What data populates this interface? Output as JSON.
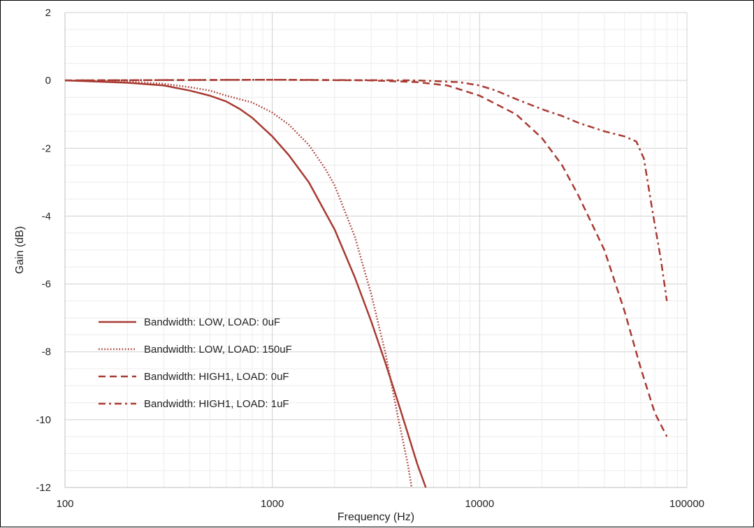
{
  "chart_data": {
    "type": "line",
    "xlabel": "Frequency (Hz)",
    "ylabel": "Gain (dB)",
    "x_scale": "log",
    "xlim": [
      100,
      100000
    ],
    "ylim": [
      -12,
      2
    ],
    "x_ticks": [
      100,
      1000,
      10000,
      100000
    ],
    "x_tick_labels": [
      "100",
      "1000",
      "10000",
      "100000"
    ],
    "y_ticks": [
      2,
      0,
      -2,
      -4,
      -6,
      -8,
      -10,
      -12
    ],
    "y_tick_labels": [
      "2",
      "0",
      "-2",
      "-4",
      "-6",
      "-8",
      "-10",
      "-12"
    ],
    "grid": true,
    "legend_position": "lower-left",
    "color": "#a83a32",
    "series": [
      {
        "name": "Bandwidth: LOW, LOAD: 0uF",
        "style": "solid",
        "points": [
          [
            100,
            0
          ],
          [
            200,
            -0.07
          ],
          [
            300,
            -0.15
          ],
          [
            400,
            -0.3
          ],
          [
            500,
            -0.45
          ],
          [
            600,
            -0.62
          ],
          [
            700,
            -0.85
          ],
          [
            800,
            -1.1
          ],
          [
            1000,
            -1.65
          ],
          [
            1200,
            -2.2
          ],
          [
            1500,
            -3.0
          ],
          [
            2000,
            -4.4
          ],
          [
            2500,
            -5.8
          ],
          [
            3000,
            -7.1
          ],
          [
            3500,
            -8.3
          ],
          [
            4000,
            -9.4
          ],
          [
            4500,
            -10.4
          ],
          [
            5000,
            -11.3
          ],
          [
            5500,
            -12
          ]
        ]
      },
      {
        "name": "Bandwidth: LOW, LOAD: 150uF",
        "style": "dotted",
        "points": [
          [
            100,
            0
          ],
          [
            200,
            -0.03
          ],
          [
            300,
            -0.1
          ],
          [
            400,
            -0.2
          ],
          [
            500,
            -0.3
          ],
          [
            600,
            -0.45
          ],
          [
            800,
            -0.65
          ],
          [
            1000,
            -0.95
          ],
          [
            1200,
            -1.3
          ],
          [
            1500,
            -1.9
          ],
          [
            1800,
            -2.6
          ],
          [
            2000,
            -3.1
          ],
          [
            2500,
            -4.6
          ],
          [
            3000,
            -6.3
          ],
          [
            3500,
            -8.0
          ],
          [
            4000,
            -9.8
          ],
          [
            4500,
            -11.3
          ],
          [
            4700,
            -12
          ]
        ]
      },
      {
        "name": "Bandwidth: HIGH1, LOAD: 0uF",
        "style": "dashed",
        "points": [
          [
            100,
            0
          ],
          [
            1000,
            0.02
          ],
          [
            3000,
            0
          ],
          [
            5000,
            -0.05
          ],
          [
            7000,
            -0.15
          ],
          [
            10000,
            -0.45
          ],
          [
            15000,
            -1.0
          ],
          [
            20000,
            -1.7
          ],
          [
            25000,
            -2.5
          ],
          [
            30000,
            -3.4
          ],
          [
            40000,
            -5.0
          ],
          [
            50000,
            -6.8
          ],
          [
            60000,
            -8.5
          ],
          [
            70000,
            -9.8
          ],
          [
            80000,
            -10.5
          ]
        ]
      },
      {
        "name": "Bandwidth: HIGH1, LOAD: 1uF",
        "style": "dashdot",
        "points": [
          [
            100,
            0
          ],
          [
            1000,
            0.02
          ],
          [
            5000,
            0
          ],
          [
            8000,
            -0.05
          ],
          [
            10000,
            -0.15
          ],
          [
            12000,
            -0.3
          ],
          [
            15000,
            -0.55
          ],
          [
            20000,
            -0.85
          ],
          [
            25000,
            -1.05
          ],
          [
            30000,
            -1.25
          ],
          [
            40000,
            -1.5
          ],
          [
            50000,
            -1.65
          ],
          [
            57000,
            -1.8
          ],
          [
            62000,
            -2.3
          ],
          [
            68000,
            -3.8
          ],
          [
            75000,
            -5.3
          ],
          [
            80000,
            -6.5
          ]
        ]
      }
    ]
  }
}
